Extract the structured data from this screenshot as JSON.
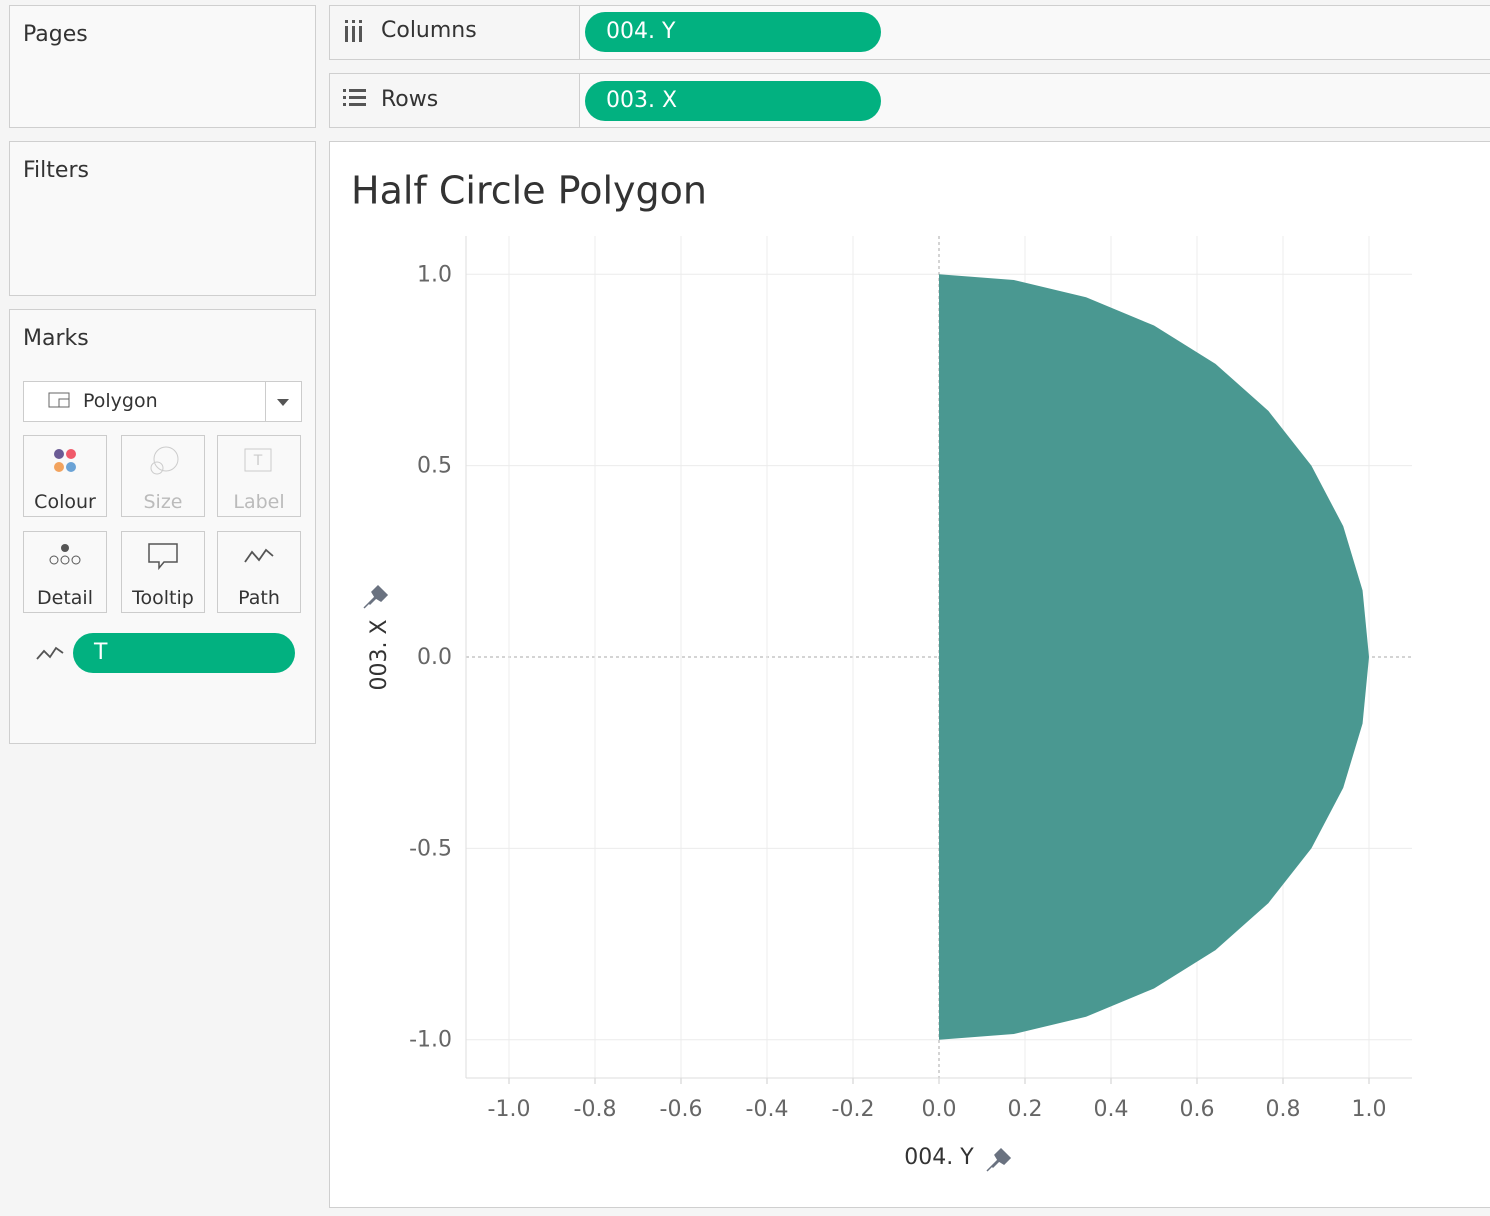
{
  "shelves": {
    "pages": "Pages",
    "filters": "Filters",
    "columns": {
      "label": "Columns",
      "pill": "004. Y"
    },
    "rows": {
      "label": "Rows",
      "pill": "003. X"
    }
  },
  "marks": {
    "title": "Marks",
    "mark_type": "Polygon",
    "cards": [
      "Colour",
      "Size",
      "Label",
      "Detail",
      "Tooltip",
      "Path"
    ],
    "path_pill": "T"
  },
  "chart_data": {
    "type": "polygon",
    "title": "Half Circle Polygon",
    "x_label": "004. Y",
    "y_label": "003. X",
    "color": "#4a9891",
    "grid": true,
    "x": [
      0,
      0.174,
      0.342,
      0.5,
      0.643,
      0.766,
      0.866,
      0.94,
      0.985,
      1,
      0.985,
      0.94,
      0.866,
      0.766,
      0.643,
      0.5,
      0.342,
      0.174,
      0
    ],
    "values": [
      1,
      0.985,
      0.94,
      0.866,
      0.766,
      0.643,
      0.5,
      0.342,
      0.174,
      0,
      -0.174,
      -0.342,
      -0.5,
      -0.643,
      -0.766,
      -0.866,
      -0.94,
      -0.985,
      -1
    ],
    "xlim": [
      -1.1,
      1.1
    ],
    "ylim": [
      -1.1,
      1.1
    ],
    "xticks": [
      {
        "value": -1,
        "label": "-1.0"
      },
      -0.8,
      -0.6,
      -0.4,
      -0.2,
      {
        "value": 0,
        "label": "0.0"
      },
      0.2,
      0.4,
      0.6,
      0.8,
      {
        "value": 1,
        "label": "1.0"
      }
    ],
    "yticks": [
      {
        "value": 1,
        "label": "1.0"
      },
      0.5,
      {
        "value": 0,
        "label": "0.0"
      },
      -0.5,
      {
        "value": -1,
        "label": "-1.0"
      }
    ]
  }
}
